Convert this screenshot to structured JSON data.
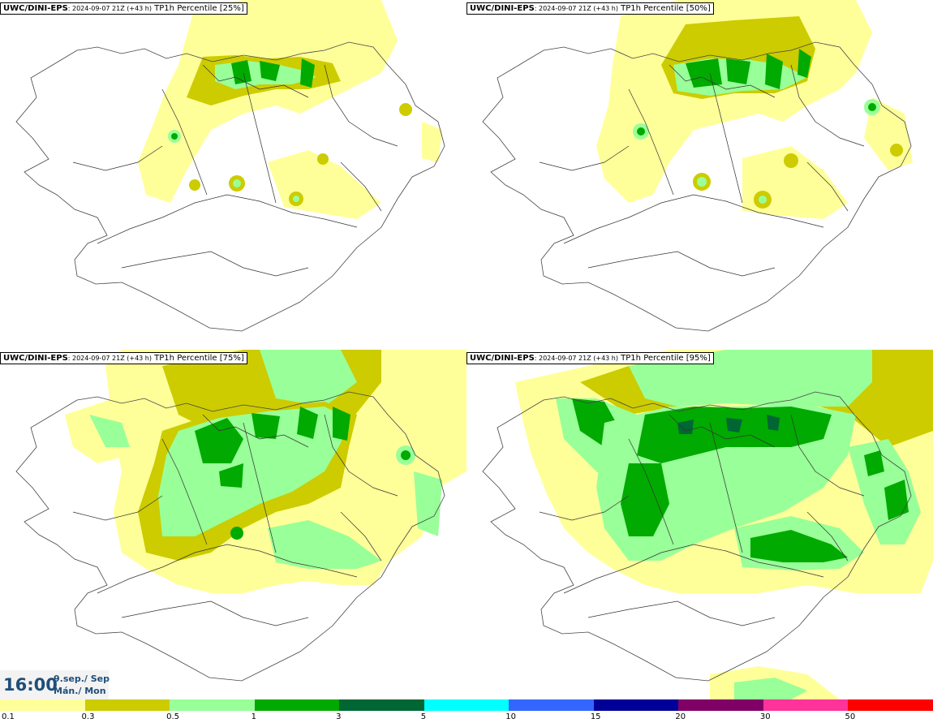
{
  "panels": [
    {
      "model": "UWC/DINI-EPS",
      "run": ": 2024-09-07 21Z (+43 h)",
      "field": "TP1h Percentile [25%]"
    },
    {
      "model": "UWC/DINI-EPS",
      "run": ": 2024-09-07 21Z (+43 h)",
      "field": "TP1h Percentile [50%]"
    },
    {
      "model": "UWC/DINI-EPS",
      "run": ": 2024-09-07 21Z (+43 h)",
      "field": "TP1h Percentile [75%]"
    },
    {
      "model": "UWC/DINI-EPS",
      "run": ": 2024-09-07 21Z (+43 h)",
      "field": "TP1h Percentile [95%]"
    }
  ],
  "time": {
    "clock": "16:00",
    "date_line": "9.sep./ Sep",
    "day_line": "Mán./ Mon"
  },
  "legend": {
    "colors": [
      "#ffff99",
      "#cccc00",
      "#99ff99",
      "#00aa00",
      "#006633",
      "#00ffff",
      "#3366ff",
      "#000099",
      "#800066",
      "#ff3399",
      "#ff0000"
    ],
    "labels": [
      "0.1",
      "0.3",
      "0.5",
      "1",
      "3",
      "5",
      "10",
      "15",
      "20",
      "30",
      "50"
    ]
  }
}
